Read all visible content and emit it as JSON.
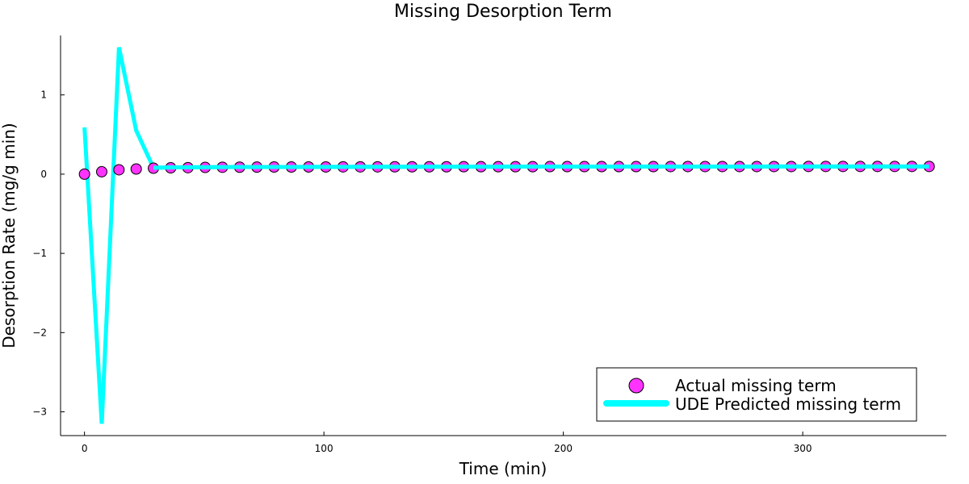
{
  "chart_data": {
    "type": "scatter+line",
    "title": "Missing Desorption Term",
    "xlabel": "Time (min)",
    "ylabel": "Desorption Rate (mg/g min)",
    "xlim": [
      -10,
      360
    ],
    "ylim": [
      -3.3,
      1.75
    ],
    "xticks": [
      0,
      100,
      200,
      300
    ],
    "xtick_labels": [
      "0",
      "100",
      "200",
      "300"
    ],
    "yticks": [
      -3,
      -2,
      -1,
      0,
      1
    ],
    "ytick_labels": [
      "−3",
      "−2",
      "−1",
      "0",
      "1"
    ],
    "grid": false,
    "legend_position": "bottom-right",
    "series": [
      {
        "name": "Actual missing term",
        "kind": "scatter",
        "color": "#ff33ff",
        "edge_color": "#000000",
        "x": [
          0,
          7.2,
          14.4,
          21.6,
          28.8,
          36,
          43.2,
          50.4,
          57.6,
          64.8,
          72,
          79.2,
          86.4,
          93.6,
          100.8,
          108,
          115.2,
          122.4,
          129.6,
          136.8,
          144,
          151.2,
          158.4,
          165.6,
          172.8,
          180,
          187.2,
          194.4,
          201.6,
          208.8,
          216,
          223.2,
          230.4,
          237.6,
          244.8,
          252,
          259.2,
          266.4,
          273.6,
          280.8,
          288,
          295.2,
          302.4,
          309.6,
          316.8,
          324,
          331.2,
          338.4,
          345.6,
          352.8
        ],
        "y": [
          0.0,
          0.03,
          0.055,
          0.065,
          0.075,
          0.08,
          0.082,
          0.085,
          0.087,
          0.088,
          0.089,
          0.09,
          0.09,
          0.091,
          0.091,
          0.092,
          0.092,
          0.092,
          0.093,
          0.093,
          0.093,
          0.093,
          0.094,
          0.094,
          0.094,
          0.094,
          0.094,
          0.095,
          0.095,
          0.095,
          0.095,
          0.095,
          0.095,
          0.095,
          0.096,
          0.096,
          0.096,
          0.096,
          0.096,
          0.096,
          0.096,
          0.096,
          0.097,
          0.097,
          0.097,
          0.097,
          0.097,
          0.097,
          0.097,
          0.097
        ]
      },
      {
        "name": "UDE Predicted missing term",
        "kind": "line",
        "color": "#00ffff",
        "x": [
          0,
          7.2,
          14.4,
          21.6,
          28.8,
          36,
          43.2,
          50.4,
          57.6,
          64.8,
          72,
          79.2,
          86.4,
          93.6,
          100.8,
          108,
          115.2,
          122.4,
          129.6,
          136.8,
          144,
          151.2,
          158.4,
          165.6,
          172.8,
          180,
          187.2,
          194.4,
          201.6,
          208.8,
          216,
          223.2,
          230.4,
          237.6,
          244.8,
          252,
          259.2,
          266.4,
          273.6,
          280.8,
          288,
          295.2,
          302.4,
          309.6,
          316.8,
          324,
          331.2,
          338.4,
          345.6,
          352.8
        ],
        "y": [
          0.59,
          -3.15,
          1.6,
          0.55,
          0.08,
          0.085,
          0.087,
          0.088,
          0.089,
          0.09,
          0.09,
          0.091,
          0.091,
          0.092,
          0.092,
          0.092,
          0.093,
          0.093,
          0.093,
          0.093,
          0.094,
          0.094,
          0.094,
          0.094,
          0.094,
          0.095,
          0.095,
          0.095,
          0.095,
          0.095,
          0.095,
          0.095,
          0.096,
          0.096,
          0.096,
          0.096,
          0.096,
          0.096,
          0.096,
          0.096,
          0.097,
          0.097,
          0.097,
          0.097,
          0.097,
          0.097,
          0.097,
          0.097,
          0.097,
          0.097
        ]
      }
    ]
  }
}
